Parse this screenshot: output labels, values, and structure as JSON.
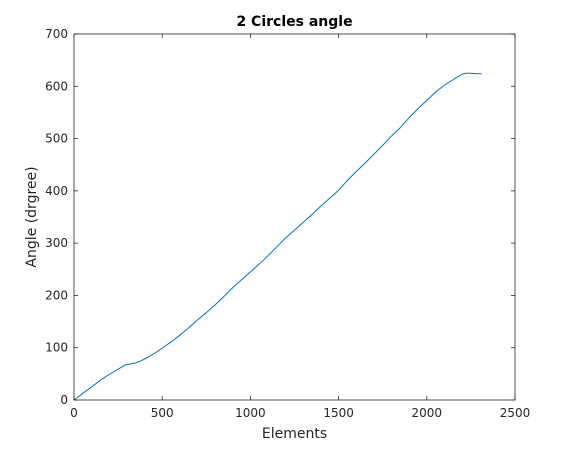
{
  "chart_data": {
    "type": "line",
    "title": "2 Circles angle",
    "xlabel": "Elements",
    "ylabel": "Angle (drgree)",
    "xlim": [
      0,
      2500
    ],
    "ylim": [
      0,
      700
    ],
    "xticks": [
      0,
      500,
      1000,
      1500,
      2000,
      2500
    ],
    "yticks": [
      0,
      100,
      200,
      300,
      400,
      500,
      600,
      700
    ],
    "grid": false,
    "box": true,
    "line_color": "#0072BD",
    "series": [
      {
        "x": [
          0,
          20,
          50,
          100,
          150,
          200,
          250,
          290,
          320,
          350,
          380,
          420,
          460,
          500,
          550,
          600,
          650,
          700,
          750,
          800,
          850,
          900,
          950,
          1000,
          1050,
          1100,
          1150,
          1200,
          1250,
          1300,
          1350,
          1400,
          1450,
          1500,
          1550,
          1600,
          1650,
          1700,
          1750,
          1800,
          1850,
          1900,
          1950,
          2000,
          2050,
          2100,
          2150,
          2180,
          2200,
          2220,
          2250,
          2280,
          2310
        ],
        "y": [
          0,
          5,
          13,
          25,
          38,
          49,
          59,
          67,
          69,
          71,
          75,
          82,
          90,
          99,
          111,
          124,
          138,
          153,
          167,
          182,
          198,
          215,
          230,
          245,
          260,
          276,
          293,
          310,
          325,
          340,
          355,
          371,
          386,
          401,
          420,
          437,
          453,
          470,
          487,
          505,
          521,
          540,
          557,
          573,
          589,
          602,
          613,
          619,
          623,
          625,
          625,
          624,
          624
        ]
      }
    ]
  }
}
